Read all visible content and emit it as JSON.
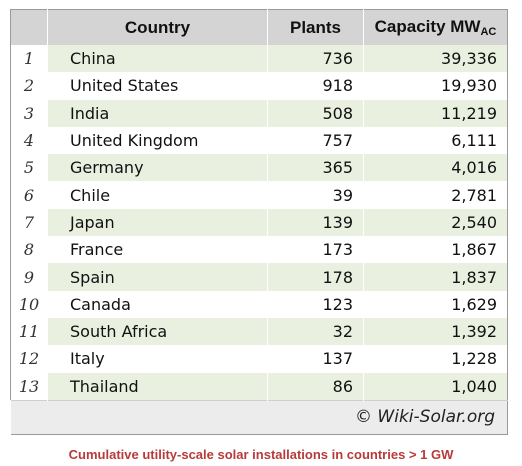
{
  "chart_data": {
    "type": "table",
    "columns": [
      "Country",
      "Plants",
      "Capacity MW",
      "AC"
    ],
    "rows": [
      {
        "rank": "1",
        "country": "China",
        "plants": "736",
        "capacity": "39,336"
      },
      {
        "rank": "2",
        "country": "United States",
        "plants": "918",
        "capacity": "19,930"
      },
      {
        "rank": "3",
        "country": "India",
        "plants": "508",
        "capacity": "11,219"
      },
      {
        "rank": "4",
        "country": "United Kingdom",
        "plants": "757",
        "capacity": "6,111"
      },
      {
        "rank": "5",
        "country": "Germany",
        "plants": "365",
        "capacity": "4,016"
      },
      {
        "rank": "6",
        "country": "Chile",
        "plants": "39",
        "capacity": "2,781"
      },
      {
        "rank": "7",
        "country": "Japan",
        "plants": "139",
        "capacity": "2,540"
      },
      {
        "rank": "8",
        "country": "France",
        "plants": "173",
        "capacity": "1,867"
      },
      {
        "rank": "9",
        "country": "Spain",
        "plants": "178",
        "capacity": "1,837"
      },
      {
        "rank": "10",
        "country": "Canada",
        "plants": "123",
        "capacity": "1,629"
      },
      {
        "rank": "11",
        "country": "South Africa",
        "plants": "32",
        "capacity": "1,392"
      },
      {
        "rank": "12",
        "country": "Italy",
        "plants": "137",
        "capacity": "1,228"
      },
      {
        "rank": "13",
        "country": "Thailand",
        "plants": "86",
        "capacity": "1,040"
      }
    ],
    "credit": "© Wiki-Solar.org",
    "caption": "Cumulative utility-scale solar installations in countries > 1 GW"
  },
  "colors": {
    "header_bg": "#d4d4d4",
    "band_green": "#eaf0df",
    "caption_red": "#b83a3a",
    "footer_bg": "#ececec"
  }
}
